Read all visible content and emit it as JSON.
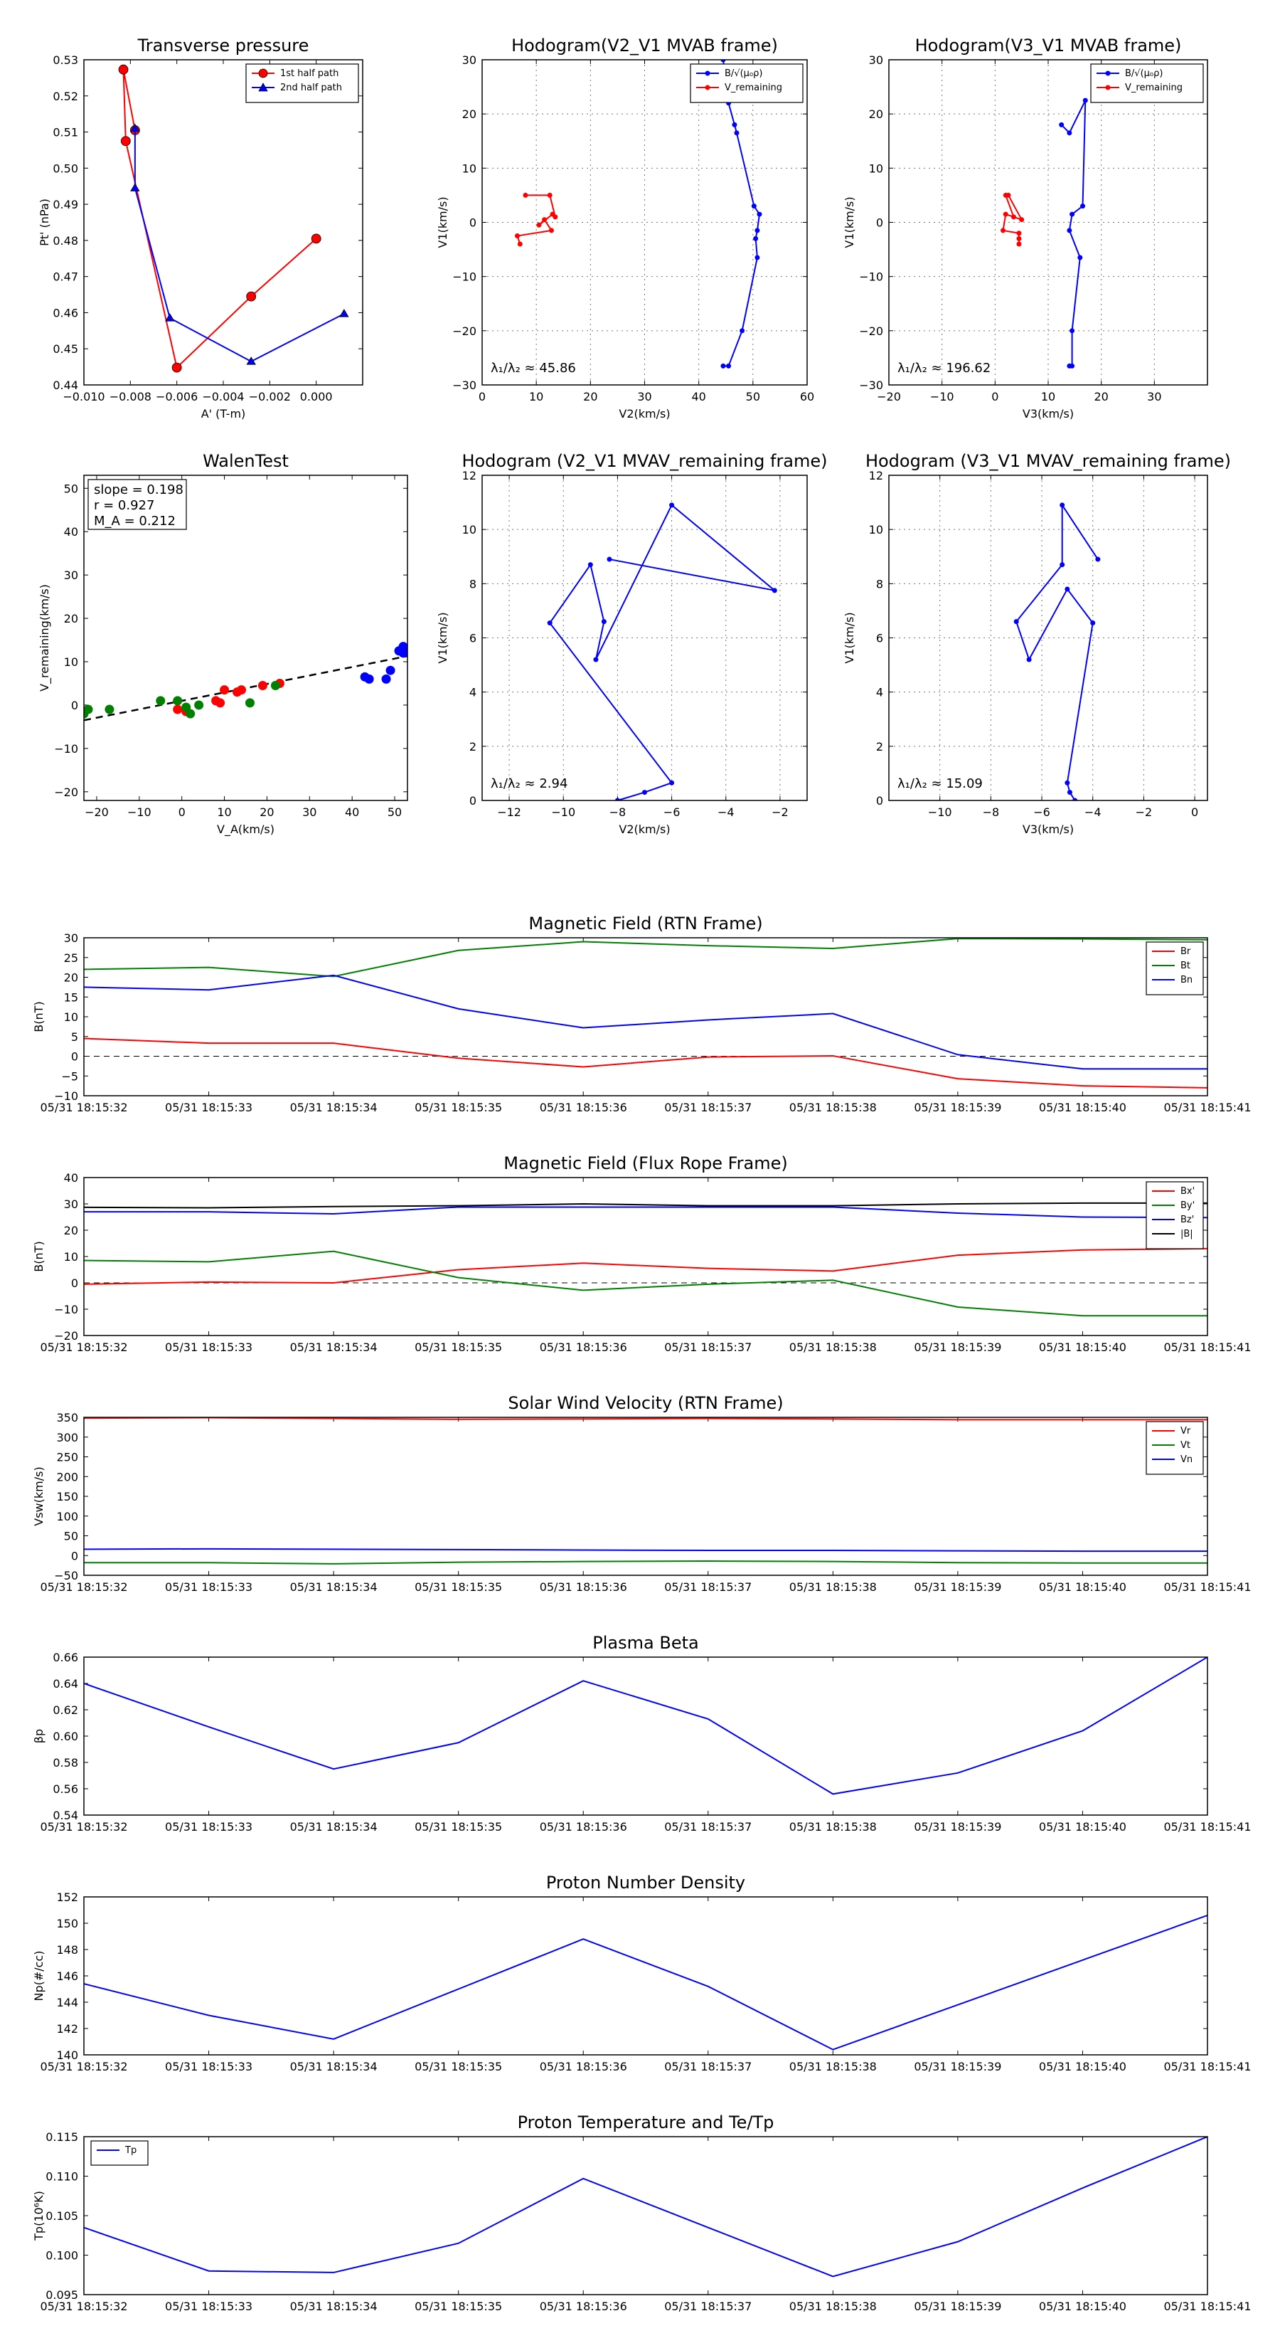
{
  "chart_data": [
    {
      "id": "tp",
      "type": "line",
      "title": "Transverse pressure",
      "xlabel": "A' (T-m)",
      "ylabel": "Pt' (nPa)",
      "xlim": [
        -0.01,
        0.002
      ],
      "ylim": [
        0.44,
        0.53
      ],
      "xticks": [
        -0.01,
        -0.008,
        -0.006,
        -0.004,
        -0.002,
        0.0
      ],
      "xticklabels": [
        "−0.010",
        "−0.008",
        "−0.006",
        "−0.004",
        "−0.002",
        "0.000"
      ],
      "yticks": [
        0.44,
        0.45,
        0.46,
        0.47,
        0.48,
        0.49,
        0.5,
        0.51,
        0.52,
        0.53
      ],
      "yticklabels": [
        "0.44",
        "0.45",
        "0.46",
        "0.47",
        "0.48",
        "0.49",
        "0.50",
        "0.51",
        "0.52",
        "0.53"
      ],
      "grid": false,
      "legend": "top-right",
      "series": [
        {
          "name": "1st half path",
          "color": "#ff0000",
          "marker": "circle",
          "x": [
            0.0,
            -0.0028,
            -0.006,
            -0.0082,
            -0.0083,
            -0.0078
          ],
          "y": [
            0.4805,
            0.4645,
            0.4448,
            0.5075,
            0.5273,
            0.5105
          ]
        },
        {
          "name": "2nd half path",
          "color": "#0000ff",
          "marker": "triangle",
          "x": [
            -0.0078,
            -0.0078,
            -0.0063,
            -0.0028,
            0.0012
          ],
          "y": [
            0.511,
            0.4945,
            0.4585,
            0.4465,
            0.4597
          ]
        }
      ]
    },
    {
      "id": "h1",
      "type": "line",
      "title": "Hodogram(V2_V1 MVAB frame)",
      "xlabel": "V2(km/s)",
      "ylabel": "V1(km/s)",
      "xlim": [
        0,
        60
      ],
      "ylim": [
        -30,
        30
      ],
      "xticks": [
        0,
        10,
        20,
        30,
        40,
        50,
        60
      ],
      "xticklabels": [
        "0",
        "10",
        "20",
        "30",
        "40",
        "50",
        "60"
      ],
      "yticks": [
        -30,
        -20,
        -10,
        0,
        10,
        20,
        30
      ],
      "yticklabels": [
        "−30",
        "−20",
        "−10",
        "0",
        "10",
        "20",
        "30"
      ],
      "grid": true,
      "legend": "top-right",
      "annotation": "λ₁/λ₂ ≈ 45.86",
      "series": [
        {
          "name": "B/√(μ₀ρ)",
          "color": "#0000ff",
          "x": [
            44.5,
            45.5,
            48,
            50.8,
            50.5,
            50.8,
            51.2,
            50.2,
            47,
            46.6,
            45.5,
            44.5
          ],
          "y": [
            -26.5,
            -26.5,
            -20,
            -6.5,
            -3,
            -1.5,
            1.5,
            3,
            16.5,
            18,
            22,
            30
          ]
        },
        {
          "name": "V_remaining",
          "color": "#ff0000",
          "x": [
            7,
            6.5,
            12.8,
            11.5,
            10.5,
            13,
            13.5,
            12.5,
            8
          ],
          "y": [
            -4,
            -2.5,
            -1.5,
            0.5,
            -0.5,
            1.5,
            1,
            5,
            5
          ]
        }
      ]
    },
    {
      "id": "h2",
      "type": "line",
      "title": "Hodogram(V3_V1 MVAB frame)",
      "xlabel": "V3(km/s)",
      "ylabel": "V1(km/s)",
      "xlim": [
        -20,
        40
      ],
      "ylim": [
        -30,
        30
      ],
      "xticks": [
        -20,
        -10,
        0,
        10,
        20,
        30
      ],
      "xticklabels": [
        "−20",
        "−10",
        "0",
        "10",
        "20",
        "30"
      ],
      "yticks": [
        -30,
        -20,
        -10,
        0,
        10,
        20,
        30
      ],
      "yticklabels": [
        "−30",
        "−20",
        "−10",
        "0",
        "10",
        "20",
        "30"
      ],
      "grid": true,
      "legend": "top-right",
      "annotation": "λ₁/λ₂ ≈ 196.62",
      "series": [
        {
          "name": "B/√(μ₀ρ)",
          "color": "#0000ff",
          "x": [
            14,
            14.5,
            14.5,
            16,
            14,
            14.5,
            16.5,
            17,
            14,
            12.5
          ],
          "y": [
            -26.5,
            -26.5,
            -20,
            -6.5,
            -1.5,
            1.5,
            3,
            22.5,
            16.5,
            18
          ]
        },
        {
          "name": "V_remaining",
          "color": "#ff0000",
          "x": [
            4.5,
            4.5,
            4.5,
            1.5,
            2,
            5,
            2.5,
            2,
            3.5
          ],
          "y": [
            -4,
            -3,
            -2,
            -1.5,
            1.5,
            0.5,
            5,
            5,
            1
          ]
        }
      ]
    },
    {
      "id": "walen",
      "type": "scatter",
      "title": "WalenTest",
      "xlabel": "V_A(km/s)",
      "ylabel": "V_remaining(km/s)",
      "xlim": [
        -23,
        53
      ],
      "ylim": [
        -22,
        53
      ],
      "xticks": [
        -20,
        -10,
        0,
        10,
        20,
        30,
        40,
        50
      ],
      "xticklabels": [
        "−20",
        "−10",
        "0",
        "10",
        "20",
        "30",
        "40",
        "50"
      ],
      "yticks": [
        -20,
        -10,
        0,
        10,
        20,
        30,
        40,
        50
      ],
      "yticklabels": [
        "−20",
        "−10",
        "0",
        "10",
        "20",
        "30",
        "40",
        "50"
      ],
      "grid": false,
      "stats": [
        "slope = 0.198",
        "r = 0.927",
        "M_A = 0.212"
      ],
      "fit_line": {
        "x": [
          -23,
          53
        ],
        "y": [
          -3.5,
          11.3
        ],
        "color": "#000000",
        "style": "dashed"
      },
      "series": [
        {
          "name": "red",
          "color": "#ff0000",
          "x": [
            -1,
            1,
            8,
            9,
            10,
            13,
            14,
            19,
            23
          ],
          "y": [
            -1,
            -1.5,
            1,
            0.5,
            3.5,
            3,
            3.5,
            4.5,
            5
          ]
        },
        {
          "name": "green",
          "color": "#008000",
          "x": [
            -23,
            -22,
            -17,
            -5,
            -1,
            1,
            2,
            4,
            16,
            22
          ],
          "y": [
            -2,
            -1,
            -1,
            1,
            1,
            -0.5,
            -2,
            0,
            0.5,
            4.5
          ]
        },
        {
          "name": "blue",
          "color": "#0000ff",
          "x": [
            43,
            44,
            48,
            49,
            51,
            52,
            52,
            53
          ],
          "y": [
            6.5,
            6,
            6,
            8,
            12.5,
            12,
            13.5,
            13
          ]
        }
      ]
    },
    {
      "id": "h3",
      "type": "line",
      "title": "Hodogram (V2_V1 MVAV_remaining frame)",
      "xlabel": "V2(km/s)",
      "ylabel": "V1(km/s)",
      "xlim": [
        -13,
        -1
      ],
      "ylim": [
        0,
        12
      ],
      "xticks": [
        -12,
        -10,
        -8,
        -6,
        -4,
        -2
      ],
      "xticklabels": [
        "−12",
        "−10",
        "−8",
        "−6",
        "−4",
        "−2"
      ],
      "yticks": [
        0,
        2,
        4,
        6,
        8,
        10,
        12
      ],
      "yticklabels": [
        "0",
        "2",
        "4",
        "6",
        "8",
        "10",
        "12"
      ],
      "grid": true,
      "annotation": "λ₁/λ₂ ≈ 2.94",
      "series": [
        {
          "name": "hodogram",
          "color": "#0000ff",
          "x": [
            -8,
            -7,
            -6,
            -10.5,
            -9,
            -8.5,
            -8.8,
            -6,
            -2.2,
            -8.3
          ],
          "y": [
            0,
            0.3,
            0.65,
            6.55,
            8.7,
            6.6,
            5.2,
            10.9,
            7.75,
            8.9
          ]
        }
      ]
    },
    {
      "id": "h4",
      "type": "line",
      "title": "Hodogram (V3_V1 MVAV_remaining frame)",
      "xlabel": "V3(km/s)",
      "ylabel": "V1(km/s)",
      "xlim": [
        -12,
        0.5
      ],
      "ylim": [
        0,
        12
      ],
      "xticks": [
        -10,
        -8,
        -6,
        -4,
        -2,
        0
      ],
      "xticklabels": [
        "−10",
        "−8",
        "−6",
        "−4",
        "−2",
        "0"
      ],
      "yticks": [
        0,
        2,
        4,
        6,
        8,
        10,
        12
      ],
      "yticklabels": [
        "0",
        "2",
        "4",
        "6",
        "8",
        "10",
        "12"
      ],
      "grid": true,
      "annotation": "λ₁/λ₂ ≈ 15.09",
      "series": [
        {
          "name": "hodogram",
          "color": "#0000ff",
          "x": [
            -4.7,
            -4.9,
            -5,
            -4,
            -5,
            -6.5,
            -7,
            -5.2,
            -5.2,
            -3.8
          ],
          "y": [
            0,
            0.3,
            0.65,
            6.55,
            7.8,
            5.2,
            6.6,
            8.7,
            10.9,
            8.9
          ]
        }
      ]
    },
    {
      "id": "mag_rtn",
      "type": "line",
      "title": "Magnetic Field (RTN Frame)",
      "ylabel": "B(nT)",
      "ylim": [
        -10,
        30
      ],
      "yticks": [
        -10,
        -5,
        0,
        5,
        10,
        15,
        20,
        25,
        30
      ],
      "yticklabels": [
        "−10",
        "−5",
        "0",
        "5",
        "10",
        "15",
        "20",
        "25",
        "30"
      ],
      "zero_line": true,
      "legend": "top-right",
      "categories": [
        "05/31 18:15:32",
        "05/31 18:15:33",
        "05/31 18:15:34",
        "05/31 18:15:35",
        "05/31 18:15:36",
        "05/31 18:15:37",
        "05/31 18:15:38",
        "05/31 18:15:39",
        "05/31 18:15:40",
        "05/31 18:15:41"
      ],
      "series": [
        {
          "name": "Br",
          "color": "#ff0000",
          "values": [
            4.5,
            3.3,
            3.3,
            -0.5,
            -2.7,
            -0.2,
            0.1,
            -5.7,
            -7.5,
            -8
          ]
        },
        {
          "name": "Bt",
          "color": "#008000",
          "values": [
            22,
            22.5,
            20.2,
            26.8,
            29,
            28,
            27.3,
            29.8,
            29.7,
            29.5
          ]
        },
        {
          "name": "Bn",
          "color": "#0000ff",
          "values": [
            17.5,
            16.8,
            20.5,
            12,
            7.2,
            9.2,
            10.8,
            0.4,
            -3.2,
            -3.2
          ]
        }
      ]
    },
    {
      "id": "mag_fr",
      "type": "line",
      "title": "Magnetic Field (Flux Rope Frame)",
      "ylabel": "B(nT)",
      "ylim": [
        -20,
        40
      ],
      "yticks": [
        -20,
        -10,
        0,
        10,
        20,
        30,
        40
      ],
      "yticklabels": [
        "−20",
        "−10",
        "0",
        "10",
        "20",
        "30",
        "40"
      ],
      "zero_line": true,
      "legend": "top-right",
      "categories": [
        "05/31 18:15:32",
        "05/31 18:15:33",
        "05/31 18:15:34",
        "05/31 18:15:35",
        "05/31 18:15:36",
        "05/31 18:15:37",
        "05/31 18:15:38",
        "05/31 18:15:39",
        "05/31 18:15:40",
        "05/31 18:15:41"
      ],
      "series": [
        {
          "name": "Bx'",
          "color": "#ff0000",
          "values": [
            -0.5,
            0.3,
            0,
            5,
            7.5,
            5.5,
            4.5,
            10.5,
            12.5,
            13
          ]
        },
        {
          "name": "By'",
          "color": "#008000",
          "values": [
            8.5,
            8,
            12,
            2,
            -2.8,
            -0.5,
            1,
            -9.2,
            -12.5,
            -12.5
          ]
        },
        {
          "name": "Bz'",
          "color": "#0000ff",
          "values": [
            27,
            27,
            26.2,
            28.8,
            28.8,
            28.8,
            28.8,
            26.5,
            25,
            24.8
          ]
        },
        {
          "name": "|B|",
          "color": "#000000",
          "values": [
            28.7,
            28.5,
            29,
            29.3,
            30,
            29.3,
            29.3,
            30,
            30.3,
            30.3
          ]
        }
      ]
    },
    {
      "id": "vel",
      "type": "line",
      "title": "Solar Wind Velocity (RTN Frame)",
      "ylabel": "Vsw(km/s)",
      "ylim": [
        -50,
        350
      ],
      "yticks": [
        -50,
        0,
        50,
        100,
        150,
        200,
        250,
        300,
        350
      ],
      "yticklabels": [
        "−50",
        "0",
        "50",
        "100",
        "150",
        "200",
        "250",
        "300",
        "350"
      ],
      "legend": "top-right",
      "categories": [
        "05/31 18:15:32",
        "05/31 18:15:33",
        "05/31 18:15:34",
        "05/31 18:15:35",
        "05/31 18:15:36",
        "05/31 18:15:37",
        "05/31 18:15:38",
        "05/31 18:15:39",
        "05/31 18:15:40",
        "05/31 18:15:41"
      ],
      "series": [
        {
          "name": "Vr",
          "color": "#ff0000",
          "values": [
            348,
            349,
            347,
            345,
            346,
            347,
            346,
            344,
            344,
            344
          ]
        },
        {
          "name": "Vt",
          "color": "#008000",
          "values": [
            -18,
            -18,
            -21,
            -17,
            -15,
            -14,
            -15,
            -18,
            -19,
            -19
          ]
        },
        {
          "name": "Vn",
          "color": "#0000ff",
          "values": [
            16,
            17,
            16,
            15,
            14,
            13,
            13,
            12,
            11,
            11
          ]
        }
      ]
    },
    {
      "id": "beta",
      "type": "line",
      "title": "Plasma Beta",
      "ylabel": "βp",
      "ylim": [
        0.54,
        0.66
      ],
      "yticks": [
        0.54,
        0.56,
        0.58,
        0.6,
        0.62,
        0.64,
        0.66
      ],
      "yticklabels": [
        "0.54",
        "0.56",
        "0.58",
        "0.60",
        "0.62",
        "0.64",
        "0.66"
      ],
      "categories": [
        "05/31 18:15:32",
        "05/31 18:15:33",
        "05/31 18:15:34",
        "05/31 18:15:35",
        "05/31 18:15:36",
        "05/31 18:15:37",
        "05/31 18:15:38",
        "05/31 18:15:39",
        "05/31 18:15:40",
        "05/31 18:15:41"
      ],
      "series": [
        {
          "name": "beta",
          "color": "#0000ff",
          "values": [
            0.64,
            0.607,
            0.575,
            0.595,
            0.642,
            0.613,
            0.556,
            0.572,
            0.604,
            0.66
          ]
        }
      ]
    },
    {
      "id": "np",
      "type": "line",
      "title": "Proton Number Density",
      "ylabel": "Np(#/cc)",
      "ylim": [
        140,
        152
      ],
      "yticks": [
        140,
        142,
        144,
        146,
        148,
        150,
        152
      ],
      "yticklabels": [
        "140",
        "142",
        "144",
        "146",
        "148",
        "150",
        "152"
      ],
      "categories": [
        "05/31 18:15:32",
        "05/31 18:15:33",
        "05/31 18:15:34",
        "05/31 18:15:35",
        "05/31 18:15:36",
        "05/31 18:15:37",
        "05/31 18:15:38",
        "05/31 18:15:39",
        "05/31 18:15:40",
        "05/31 18:15:41"
      ],
      "series": [
        {
          "name": "Np",
          "color": "#0000ff",
          "values": [
            145.4,
            143,
            141.2,
            145,
            148.8,
            145.2,
            140.4,
            143.8,
            147.2,
            150.6
          ]
        }
      ]
    },
    {
      "id": "tp_temp",
      "type": "line",
      "title": "Proton Temperature and Te/Tp",
      "ylabel": "Tp(10⁶K)",
      "ylim": [
        0.095,
        0.115
      ],
      "yticks": [
        0.095,
        0.1,
        0.105,
        0.11,
        0.115
      ],
      "yticklabels": [
        "0.095",
        "0.100",
        "0.105",
        "0.110",
        "0.115"
      ],
      "legend": "top-left",
      "categories": [
        "05/31 18:15:32",
        "05/31 18:15:33",
        "05/31 18:15:34",
        "05/31 18:15:35",
        "05/31 18:15:36",
        "05/31 18:15:37",
        "05/31 18:15:38",
        "05/31 18:15:39",
        "05/31 18:15:40",
        "05/31 18:15:41"
      ],
      "series": [
        {
          "name": "Tp",
          "color": "#0000ff",
          "values": [
            0.1035,
            0.098,
            0.0978,
            0.1015,
            0.1097,
            0.1035,
            0.0973,
            0.1017,
            0.1085,
            0.115
          ]
        }
      ]
    }
  ]
}
